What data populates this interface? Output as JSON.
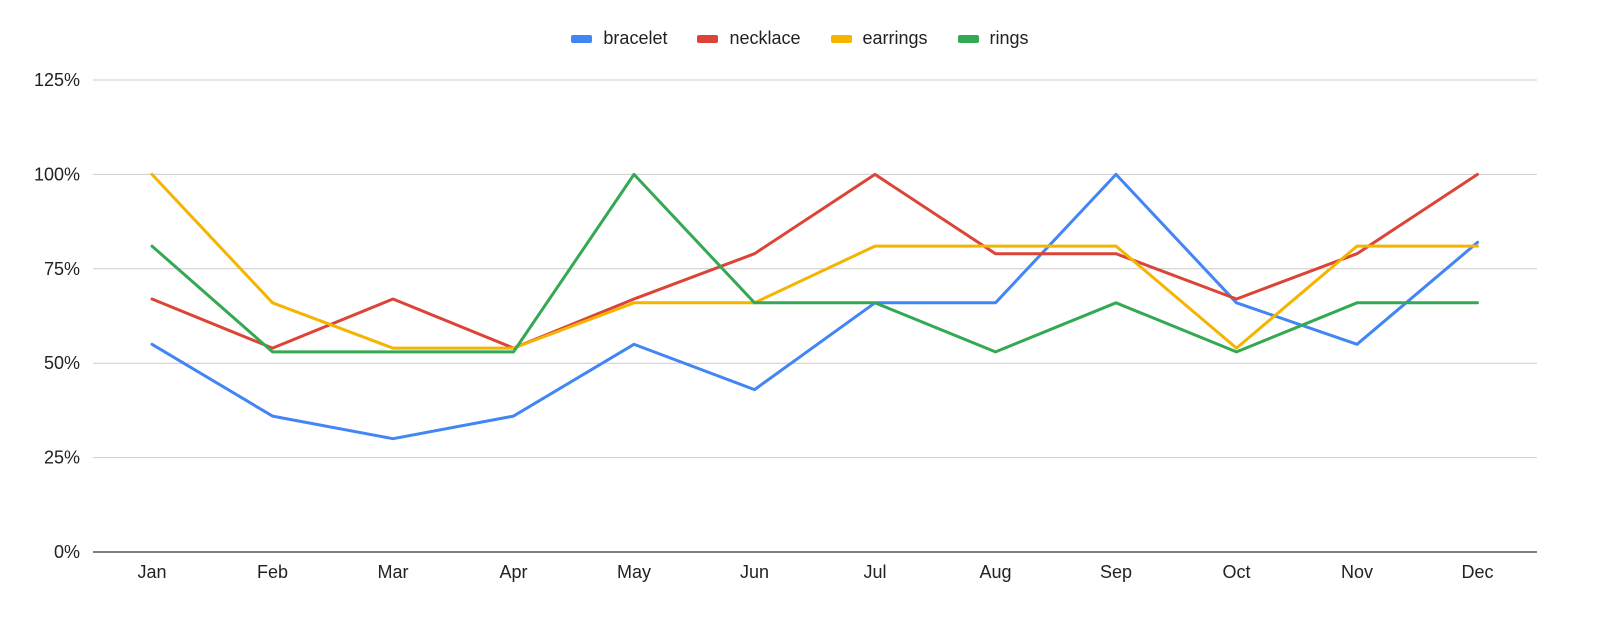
{
  "chart_data": {
    "type": "line",
    "title": "",
    "xlabel": "",
    "ylabel": "",
    "categories": [
      "Jan",
      "Feb",
      "Mar",
      "Apr",
      "May",
      "Jun",
      "Jul",
      "Aug",
      "Sep",
      "Oct",
      "Nov",
      "Dec"
    ],
    "ylim": [
      0,
      125
    ],
    "yticks": [
      0,
      25,
      50,
      75,
      100,
      125
    ],
    "ytick_labels": [
      "0%",
      "25%",
      "50%",
      "75%",
      "100%",
      "125%"
    ],
    "grid": true,
    "legend_position": "top-center",
    "series": [
      {
        "name": "bracelet",
        "color": "#4285f4",
        "values": [
          55,
          36,
          30,
          36,
          55,
          43,
          66,
          66,
          100,
          66,
          55,
          82
        ]
      },
      {
        "name": "necklace",
        "color": "#db4437",
        "values": [
          67,
          54,
          67,
          54,
          67,
          79,
          100,
          79,
          79,
          67,
          79,
          100
        ]
      },
      {
        "name": "earrings",
        "color": "#f4b400",
        "values": [
          100,
          66,
          54,
          54,
          66,
          66,
          81,
          81,
          81,
          54,
          81,
          81
        ]
      },
      {
        "name": "rings",
        "color": "#34a853",
        "values": [
          81,
          53,
          53,
          53,
          100,
          66,
          66,
          53,
          66,
          53,
          66,
          66
        ]
      }
    ]
  }
}
